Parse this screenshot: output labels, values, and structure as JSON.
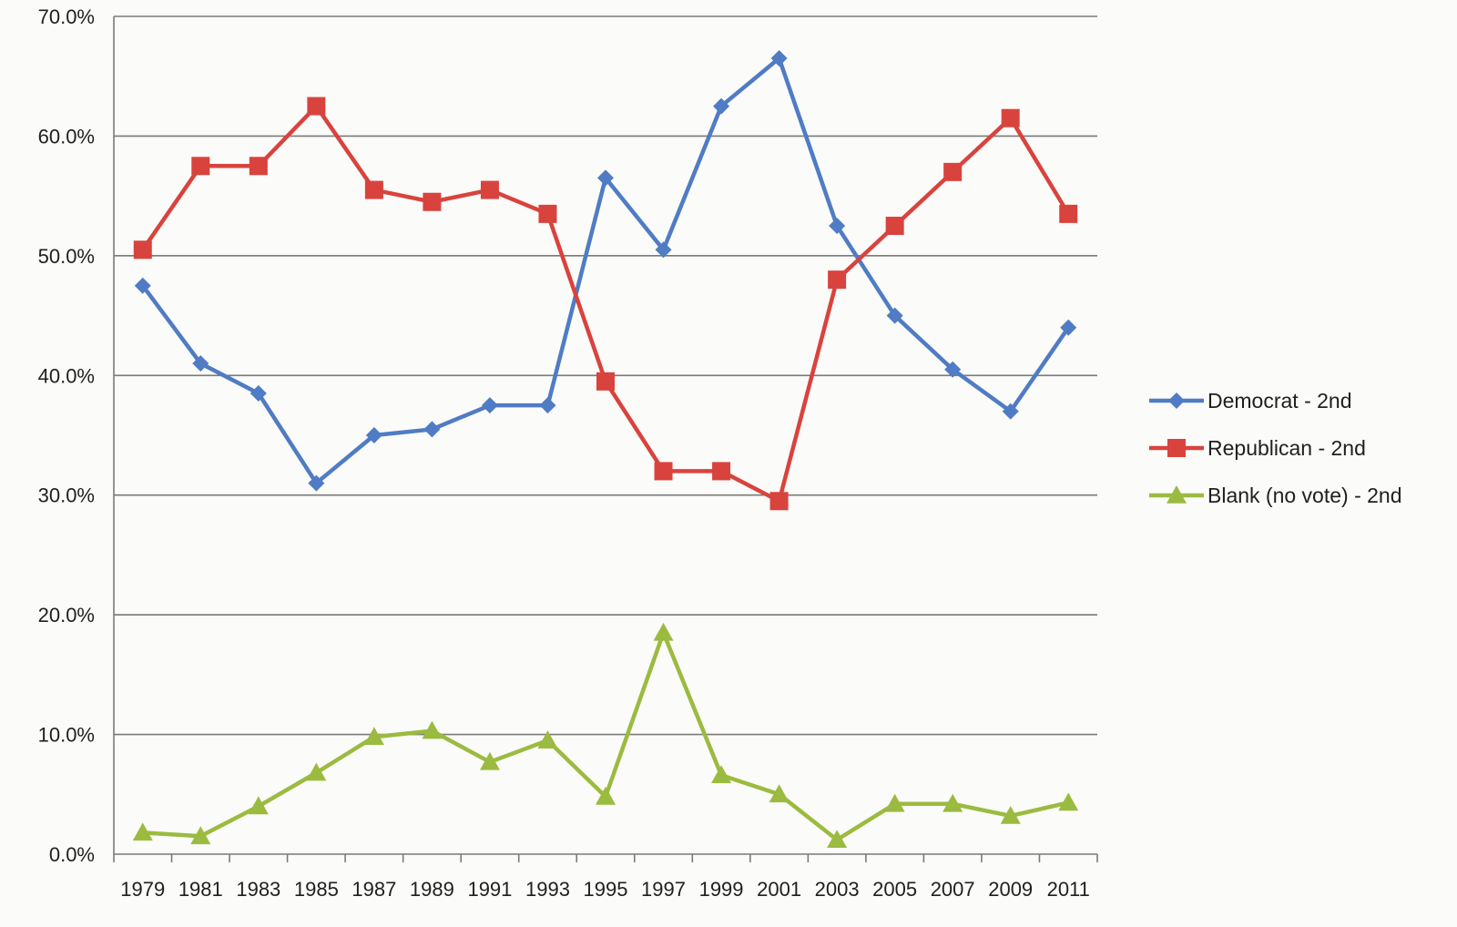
{
  "chart_data": {
    "type": "line",
    "title": "",
    "xlabel": "",
    "ylabel": "",
    "categories": [
      "1979",
      "1981",
      "1983",
      "1985",
      "1987",
      "1989",
      "1991",
      "1993",
      "1995",
      "1997",
      "1999",
      "2001",
      "2003",
      "2005",
      "2007",
      "2009",
      "2011"
    ],
    "y_ticks": [
      "0.0%",
      "10.0%",
      "20.0%",
      "30.0%",
      "40.0%",
      "50.0%",
      "60.0%",
      "70.0%"
    ],
    "ylim": [
      0,
      70
    ],
    "grid": "horizontal",
    "legend_position": "right",
    "series": [
      {
        "name": "Democrat - 2nd",
        "color": "#4f7cc4",
        "marker": "diamond",
        "values": [
          47.5,
          41.0,
          38.5,
          31.0,
          35.0,
          35.5,
          37.5,
          37.5,
          56.5,
          50.5,
          62.5,
          66.5,
          52.5,
          45.0,
          40.5,
          37.0,
          44.0
        ]
      },
      {
        "name": "Republican - 2nd",
        "color": "#d9433d",
        "marker": "square",
        "values": [
          50.5,
          57.5,
          57.5,
          62.5,
          55.5,
          54.5,
          55.5,
          53.5,
          39.5,
          32.0,
          32.0,
          29.5,
          48.0,
          52.5,
          57.0,
          61.5,
          53.5
        ]
      },
      {
        "name": "Blank (no vote) - 2nd",
        "color": "#9bbb40",
        "marker": "triangle",
        "values": [
          1.8,
          1.5,
          4.0,
          6.8,
          9.8,
          10.3,
          7.7,
          9.5,
          4.8,
          18.5,
          6.6,
          5.0,
          1.2,
          4.2,
          4.2,
          3.2,
          4.3
        ]
      }
    ]
  }
}
